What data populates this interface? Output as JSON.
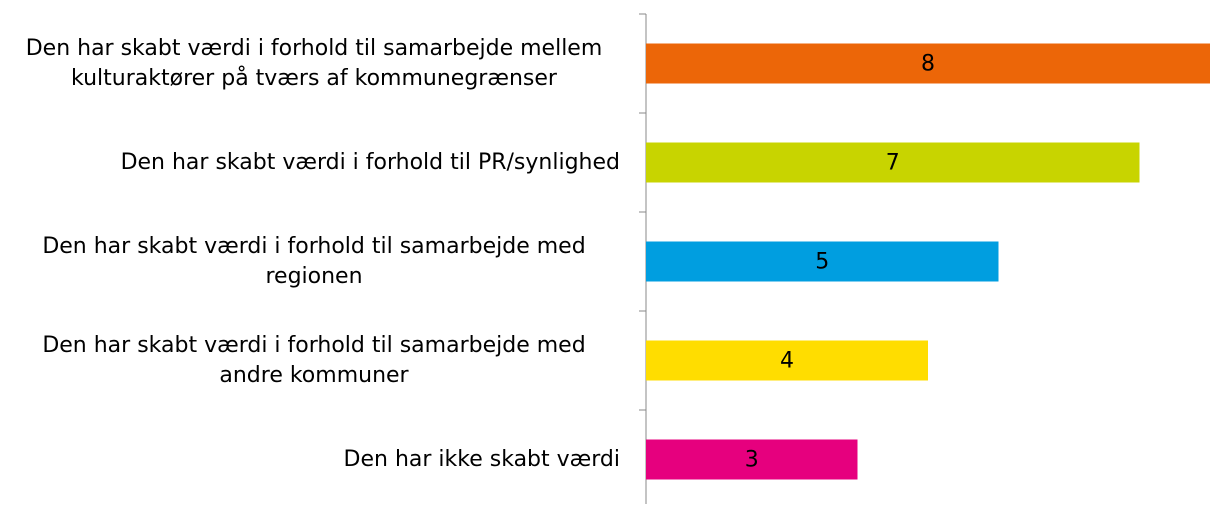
{
  "chart_data": {
    "type": "bar",
    "orientation": "horizontal",
    "categories": [
      "Den har skabt værdi i forhold til samarbejde mellem kulturaktører på tværs af kommunegrænser",
      "Den har skabt værdi i forhold til PR/synlighed",
      "Den har skabt værdi i forhold til samarbejde med regionen",
      "Den har skabt værdi i forhold til samarbejde med andre kommuner",
      "Den har ikke skabt værdi"
    ],
    "values": [
      8,
      7,
      5,
      4,
      3
    ],
    "colors": [
      "#ec6608",
      "#c8d400",
      "#009ee0",
      "#ffdd00",
      "#e6007e"
    ]
  }
}
